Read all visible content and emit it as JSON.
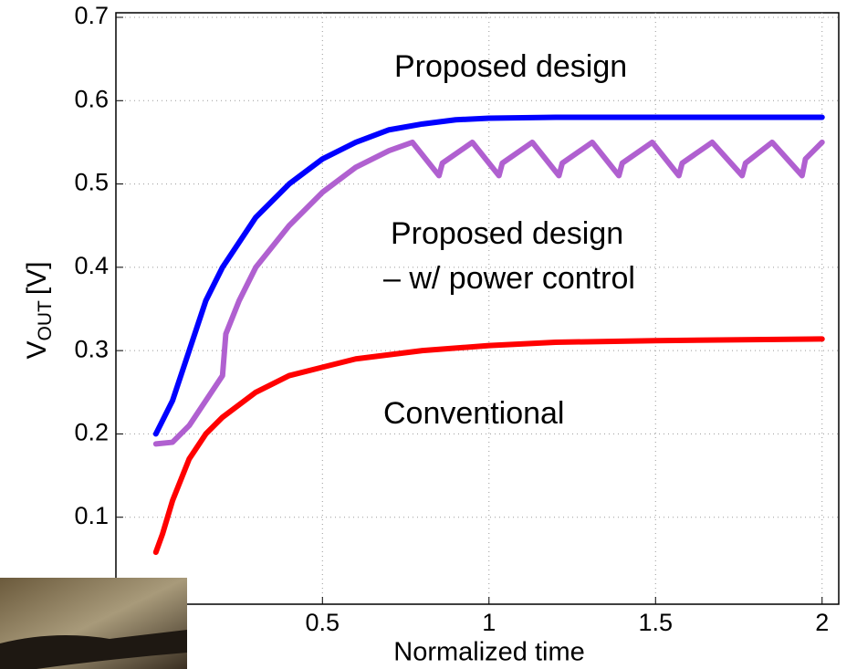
{
  "chart_data": {
    "type": "line",
    "xlabel": "Normalized time",
    "ylabel": [
      "V",
      "OUT",
      "[V]"
    ],
    "annotations": [
      "Proposed design",
      "Proposed design",
      "– w/ power control",
      "Conventional"
    ],
    "xlim": [
      -0.12,
      2.05
    ],
    "ylim": [
      0,
      0.7
    ],
    "xticks": [
      0.5,
      1,
      1.5,
      2
    ],
    "yticks": [
      0.1,
      0.2,
      0.3,
      0.4,
      0.5,
      0.6,
      0.7
    ],
    "grid": true,
    "series": [
      {
        "color": "#0000ff",
        "x": [
          0,
          0.05,
          0.1,
          0.15,
          0.2,
          0.3,
          0.4,
          0.5,
          0.6,
          0.7,
          0.8,
          0.9,
          1.0,
          1.2,
          1.4,
          1.6,
          1.8,
          2.0
        ],
        "values": [
          0.2,
          0.24,
          0.3,
          0.36,
          0.4,
          0.46,
          0.5,
          0.53,
          0.55,
          0.565,
          0.572,
          0.577,
          0.579,
          0.58,
          0.58,
          0.58,
          0.58,
          0.58
        ]
      },
      {
        "color": "#b060d0",
        "x": [
          0,
          0.05,
          0.1,
          0.15,
          0.2,
          0.21,
          0.25,
          0.3,
          0.4,
          0.5,
          0.6,
          0.7,
          0.77,
          0.85,
          0.86,
          0.95,
          1.03,
          1.04,
          1.13,
          1.21,
          1.22,
          1.31,
          1.39,
          1.4,
          1.49,
          1.57,
          1.58,
          1.67,
          1.76,
          1.77,
          1.85,
          1.94,
          1.95,
          2.0
        ],
        "values": [
          0.188,
          0.19,
          0.21,
          0.24,
          0.27,
          0.32,
          0.36,
          0.4,
          0.45,
          0.49,
          0.52,
          0.54,
          0.55,
          0.51,
          0.525,
          0.55,
          0.51,
          0.525,
          0.55,
          0.51,
          0.525,
          0.55,
          0.51,
          0.525,
          0.55,
          0.51,
          0.525,
          0.55,
          0.51,
          0.525,
          0.55,
          0.51,
          0.53,
          0.55
        ]
      },
      {
        "color": "#ff0000",
        "x": [
          0,
          0.02,
          0.05,
          0.1,
          0.15,
          0.2,
          0.3,
          0.4,
          0.5,
          0.6,
          0.8,
          1.0,
          1.2,
          1.5,
          2.0
        ],
        "values": [
          0.058,
          0.08,
          0.12,
          0.17,
          0.2,
          0.22,
          0.25,
          0.27,
          0.28,
          0.29,
          0.3,
          0.306,
          0.31,
          0.312,
          0.314
        ]
      }
    ]
  }
}
